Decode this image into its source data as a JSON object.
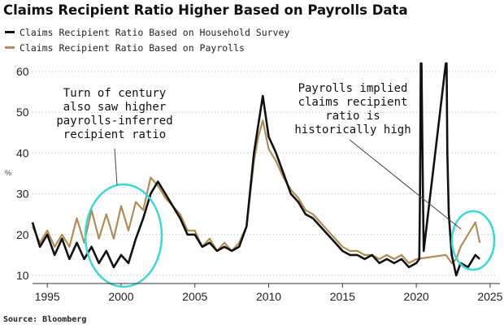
{
  "chart_data": {
    "type": "line",
    "title": "Claims Recipient Ratio Higher Based on Payrolls Data",
    "ylabel": "%",
    "xlim": [
      1994,
      2025.5
    ],
    "ylim": [
      8,
      62
    ],
    "y_ticks": [
      10,
      20,
      30,
      40,
      50,
      60
    ],
    "x_ticks": [
      1995,
      2000,
      2005,
      2010,
      2015,
      2020,
      2025
    ],
    "legend_position": "top-left",
    "grid": "horizontal-dotted",
    "series": [
      {
        "name": "Claims Recipient Ratio Based on Household Survey",
        "color": "#111111",
        "x": [
          1994.0,
          1994.5,
          1995.0,
          1995.5,
          1996.0,
          1996.5,
          1997.0,
          1997.5,
          1998.0,
          1998.5,
          1999.0,
          1999.5,
          2000.0,
          2000.5,
          2001.0,
          2001.5,
          2002.0,
          2002.5,
          2003.0,
          2003.5,
          2004.0,
          2004.5,
          2005.0,
          2005.5,
          2006.0,
          2006.5,
          2007.0,
          2007.5,
          2008.0,
          2008.5,
          2009.0,
          2009.3,
          2009.6,
          2010.0,
          2010.5,
          2011.0,
          2011.5,
          2012.0,
          2012.5,
          2013.0,
          2013.5,
          2014.0,
          2014.5,
          2015.0,
          2015.5,
          2016.0,
          2016.5,
          2017.0,
          2017.5,
          2018.0,
          2018.5,
          2019.0,
          2019.5,
          2020.0,
          2020.2,
          2020.25,
          2020.3,
          2020.35,
          2020.4,
          2020.45,
          2020.5,
          2022.0,
          2022.05,
          2022.1,
          2022.2,
          2022.4,
          2022.7,
          2023.0,
          2023.5,
          2024.0,
          2024.3
        ],
        "values": [
          23,
          17,
          20,
          15,
          19,
          14,
          18,
          14,
          17,
          13,
          16,
          12,
          15,
          13,
          19,
          24,
          30,
          33,
          30,
          27,
          24,
          20,
          20,
          17,
          18,
          16,
          17,
          16,
          17,
          22,
          40,
          47,
          54,
          44,
          40,
          35,
          30,
          28,
          25,
          24,
          22,
          20,
          18,
          16,
          15,
          15,
          14,
          15,
          13,
          14,
          13,
          14,
          12,
          13,
          14,
          30,
          62,
          62,
          45,
          30,
          16,
          62,
          62,
          40,
          25,
          15,
          10,
          13,
          12,
          15,
          14
        ]
      },
      {
        "name": "Claims Recipient Ratio Based on Payrolls",
        "color": "#b08d57",
        "x": [
          1994.0,
          1994.5,
          1995.0,
          1995.5,
          1996.0,
          1996.5,
          1997.0,
          1997.5,
          1998.0,
          1998.5,
          1999.0,
          1999.5,
          2000.0,
          2000.5,
          2001.0,
          2001.5,
          2002.0,
          2002.5,
          2003.0,
          2003.5,
          2004.0,
          2004.5,
          2005.0,
          2005.5,
          2006.0,
          2006.5,
          2007.0,
          2007.5,
          2008.0,
          2008.5,
          2009.0,
          2009.3,
          2009.6,
          2010.0,
          2010.5,
          2011.0,
          2011.5,
          2012.0,
          2012.5,
          2013.0,
          2013.5,
          2014.0,
          2014.5,
          2015.0,
          2015.5,
          2016.0,
          2016.5,
          2017.0,
          2017.5,
          2018.0,
          2018.5,
          2019.0,
          2019.5,
          2020.0,
          2022.0,
          2022.4,
          2022.7,
          2023.0,
          2023.5,
          2024.0,
          2024.3
        ],
        "values": [
          22,
          18,
          21,
          17,
          20,
          17,
          24,
          18,
          26,
          19,
          25,
          19,
          27,
          21,
          28,
          26,
          34,
          32,
          29,
          27,
          25,
          21,
          21,
          17,
          19,
          16,
          18,
          16,
          18,
          22,
          38,
          44,
          48,
          41,
          38,
          34,
          31,
          29,
          26,
          25,
          23,
          21,
          19,
          17,
          16,
          16,
          15,
          15,
          14,
          15,
          14,
          15,
          13,
          14,
          15,
          13,
          14,
          17,
          20,
          23,
          18
        ]
      }
    ],
    "annotations": [
      {
        "lines": [
          "Turn of century",
          "also saw higher",
          "payrolls-inferred",
          "recipient ratio"
        ]
      },
      {
        "lines": [
          "Payrolls implied",
          "claims recipient",
          "ratio is",
          "historically high"
        ]
      }
    ],
    "source": "Source: Bloomberg"
  }
}
